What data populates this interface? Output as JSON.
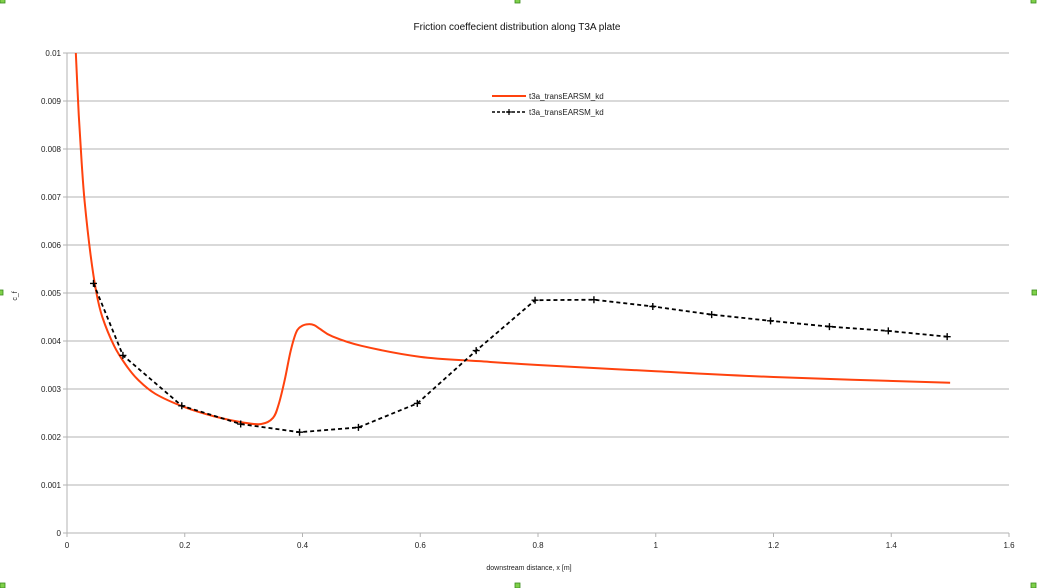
{
  "chart_data": {
    "type": "line",
    "title": "Friction coeffecient distribution along T3A plate",
    "xlabel": "downstream distance, x [m]",
    "ylabel": "c_f",
    "xlim": [
      0,
      1.6
    ],
    "ylim": [
      0,
      0.01
    ],
    "xticks": [
      "0",
      "0.2",
      "0.4",
      "0.6",
      "0.8",
      "1",
      "1.2",
      "1.4",
      "1.6"
    ],
    "yticks": [
      "0",
      "0.001",
      "0.002",
      "0.003",
      "0.004",
      "0.005",
      "0.006",
      "0.007",
      "0.008",
      "0.009",
      "0.01"
    ],
    "grid": "horizontal",
    "legend_position": "top-center",
    "series": [
      {
        "name": "t3a_transEARSM_kd",
        "style": "solid",
        "color": "#ff420e",
        "x": [
          0.015,
          0.02,
          0.025,
          0.03,
          0.04,
          0.05,
          0.06,
          0.08,
          0.1,
          0.12,
          0.15,
          0.2,
          0.25,
          0.3,
          0.33,
          0.35,
          0.36,
          0.37,
          0.38,
          0.39,
          0.4,
          0.41,
          0.42,
          0.43,
          0.45,
          0.5,
          0.6,
          0.7,
          0.8,
          1.0,
          1.2,
          1.5
        ],
        "y": [
          0.01,
          0.0087,
          0.0077,
          0.0069,
          0.0058,
          0.005,
          0.0045,
          0.0039,
          0.0035,
          0.0032,
          0.0029,
          0.00262,
          0.00243,
          0.0023,
          0.00227,
          0.0024,
          0.0027,
          0.0032,
          0.0038,
          0.0042,
          0.00432,
          0.00435,
          0.00433,
          0.00425,
          0.0041,
          0.0039,
          0.00367,
          0.00358,
          0.0035,
          0.00337,
          0.00325,
          0.00313
        ]
      },
      {
        "name": "t3a_transEARSM_kd",
        "style": "dashed-markers",
        "color": "#000000",
        "x": [
          0.045,
          0.095,
          0.195,
          0.295,
          0.395,
          0.495,
          0.595,
          0.695,
          0.795,
          0.895,
          0.995,
          1.095,
          1.195,
          1.295,
          1.395,
          1.495
        ],
        "y": [
          0.0052,
          0.0037,
          0.00265,
          0.00227,
          0.0021,
          0.0022,
          0.0027,
          0.0038,
          0.00485,
          0.00486,
          0.00472,
          0.00455,
          0.00442,
          0.0043,
          0.00421,
          0.00409
        ]
      }
    ]
  }
}
